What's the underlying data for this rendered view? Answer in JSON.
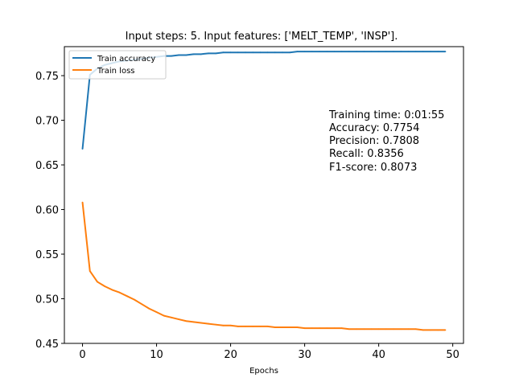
{
  "chart_data": {
    "type": "line",
    "title": "Input steps: 5. Input features: ['MELT_TEMP', 'INSP'].",
    "xlabel": "Epochs",
    "ylabel": "",
    "xlim": [
      -2.45,
      51.45
    ],
    "ylim": [
      0.45,
      0.7825
    ],
    "xticks": [
      0,
      10,
      20,
      30,
      40,
      50
    ],
    "yticks": [
      0.45,
      0.5,
      0.55,
      0.6,
      0.65,
      0.7,
      0.75
    ],
    "ytick_labels": [
      "0.45",
      "0.50",
      "0.55",
      "0.60",
      "0.65",
      "0.70",
      "0.75"
    ],
    "grid": false,
    "legend_position": "top-left",
    "x": [
      0,
      1,
      2,
      3,
      4,
      5,
      6,
      7,
      8,
      9,
      10,
      11,
      12,
      13,
      14,
      15,
      16,
      17,
      18,
      19,
      20,
      21,
      22,
      23,
      24,
      25,
      26,
      27,
      28,
      29,
      30,
      31,
      32,
      33,
      34,
      35,
      36,
      37,
      38,
      39,
      40,
      41,
      42,
      43,
      44,
      45,
      46,
      47,
      48,
      49
    ],
    "series": [
      {
        "name": "Train accuracy",
        "color": "#1f77b4",
        "values": [
          0.668,
          0.751,
          0.758,
          0.762,
          0.764,
          0.766,
          0.767,
          0.768,
          0.769,
          0.77,
          0.771,
          0.772,
          0.772,
          0.773,
          0.773,
          0.774,
          0.774,
          0.775,
          0.775,
          0.776,
          0.776,
          0.776,
          0.776,
          0.776,
          0.776,
          0.776,
          0.776,
          0.776,
          0.776,
          0.777,
          0.777,
          0.777,
          0.777,
          0.777,
          0.777,
          0.777,
          0.777,
          0.777,
          0.777,
          0.777,
          0.777,
          0.777,
          0.777,
          0.777,
          0.777,
          0.777,
          0.777,
          0.777,
          0.777,
          0.777
        ]
      },
      {
        "name": "Train loss",
        "color": "#ff7f0e",
        "values": [
          0.608,
          0.531,
          0.519,
          0.514,
          0.51,
          0.507,
          0.503,
          0.499,
          0.494,
          0.489,
          0.485,
          0.481,
          0.479,
          0.477,
          0.475,
          0.474,
          0.473,
          0.472,
          0.471,
          0.47,
          0.47,
          0.469,
          0.469,
          0.469,
          0.469,
          0.469,
          0.468,
          0.468,
          0.468,
          0.468,
          0.467,
          0.467,
          0.467,
          0.467,
          0.467,
          0.467,
          0.466,
          0.466,
          0.466,
          0.466,
          0.466,
          0.466,
          0.466,
          0.466,
          0.466,
          0.466,
          0.465,
          0.465,
          0.465,
          0.465
        ]
      }
    ],
    "annotation": [
      "Training time: 0:01:55",
      "Accuracy: 0.7754",
      "Precision: 0.7808",
      "Recall: 0.8356",
      "F1-score: 0.8073"
    ]
  }
}
